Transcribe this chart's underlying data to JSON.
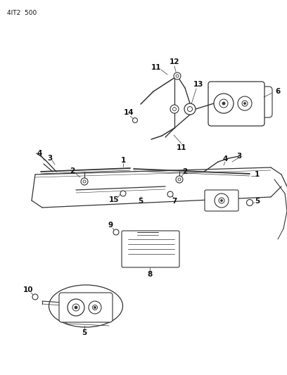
{
  "bg_color": "#ffffff",
  "line_color": "#333333",
  "text_color": "#111111",
  "header_text": "4IT2  500",
  "fig_width": 4.08,
  "fig_height": 5.33,
  "dpi": 100
}
